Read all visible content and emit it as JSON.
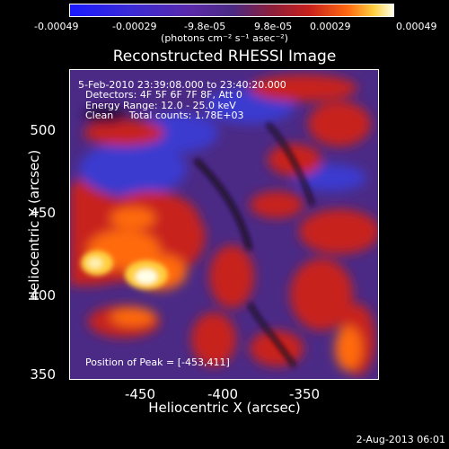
{
  "colorbar": {
    "ticks": [
      "-0.00049",
      "-0.00029",
      "-9.8e-05",
      "9.8e-05",
      "0.00029",
      "0.00049"
    ],
    "units": "(photons cm⁻² s⁻¹ asec⁻²)"
  },
  "title": "Reconstructed RHESSI Image",
  "annotations": {
    "time_range": "5-Feb-2010 23:39:08.000 to 23:40:20.000",
    "detectors": "Detectors: 4F 5F 6F 7F 8F, Att 0",
    "energy": "Energy Range: 12.0 - 25.0 keV",
    "clean": "Clean     Total counts: 1.78E+03",
    "peak": "Position of Peak = [-453,411]"
  },
  "axes": {
    "xlabel": "Heliocentric X (arcsec)",
    "ylabel": "Heliocentric Y (arcsec)",
    "xticks": [
      "-450",
      "-400",
      "-350"
    ],
    "yticks": [
      "500",
      "450",
      "400",
      "350"
    ]
  },
  "footer": "2-Aug-2013 06:01",
  "colors": {
    "background": "#000000",
    "colormap": [
      "#1a1aff",
      "#5a2aa8",
      "#4a2a84",
      "#c8201c",
      "#ff6a10",
      "#ffd040",
      "#ffffe8"
    ]
  }
}
